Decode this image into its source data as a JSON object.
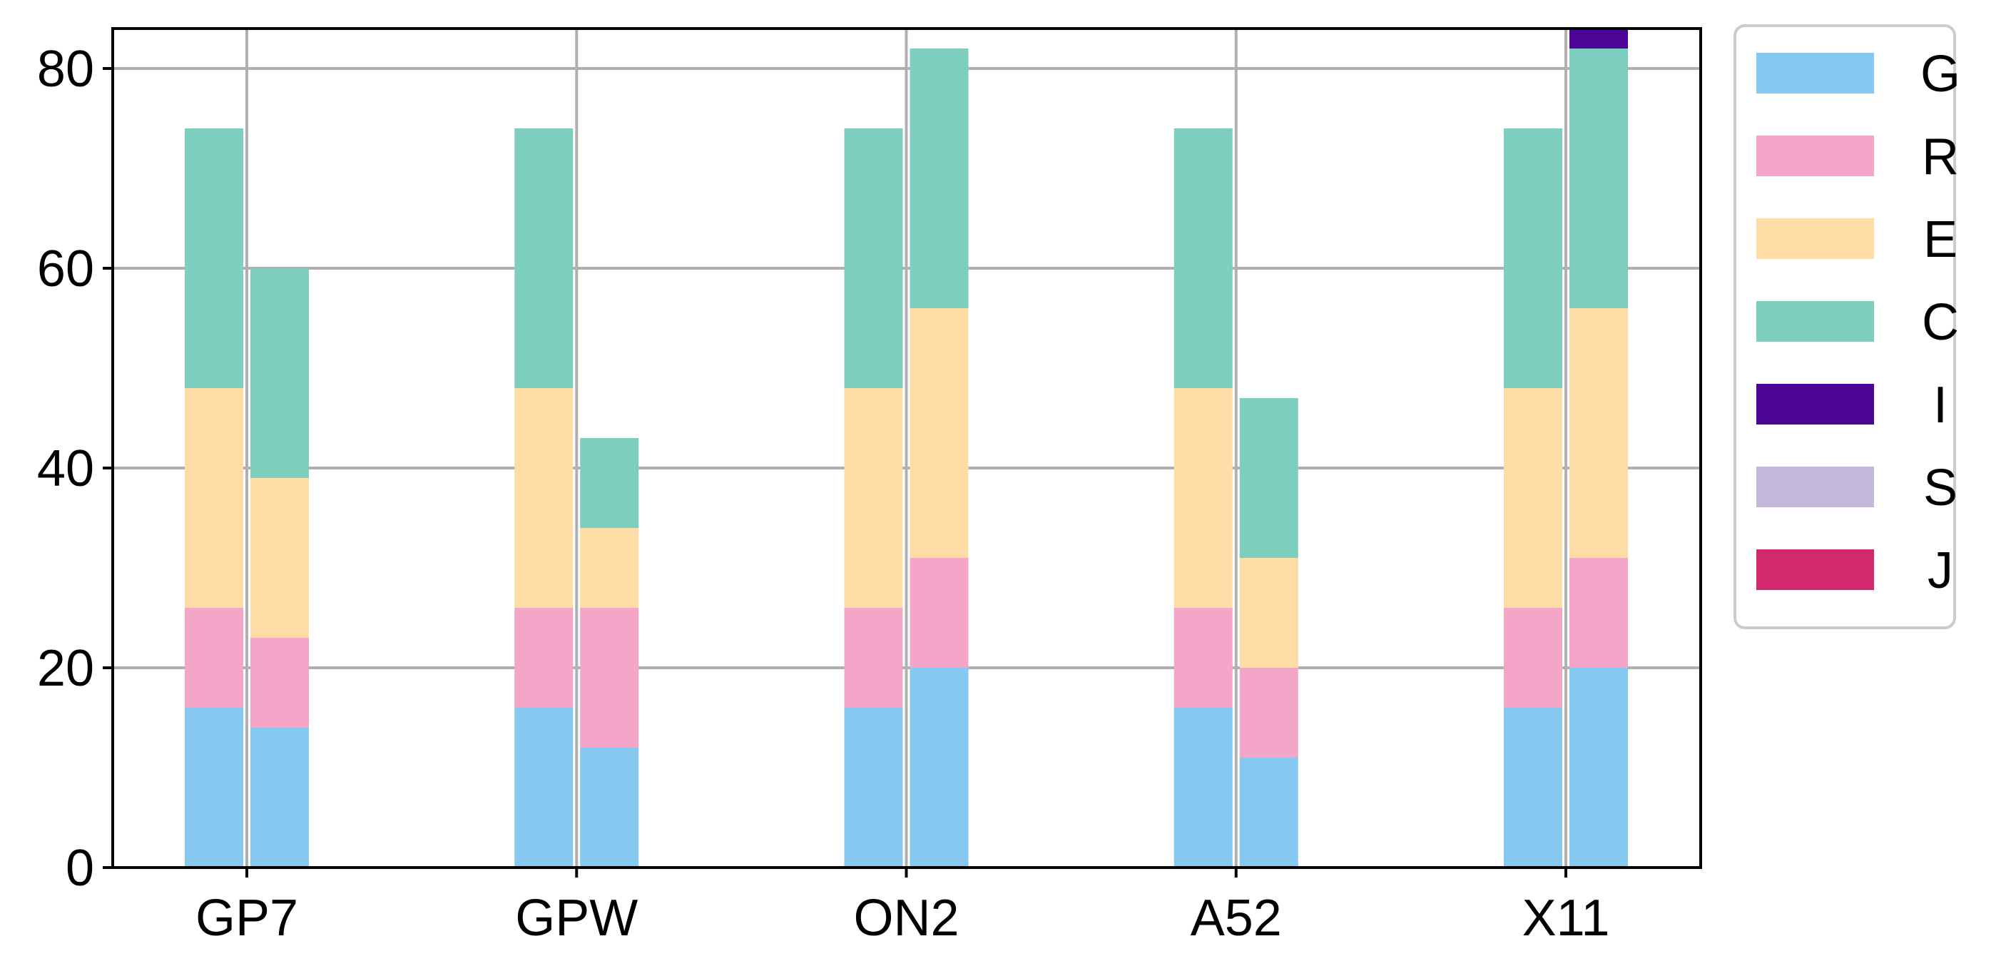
{
  "chart_data": {
    "type": "bar",
    "stacked": true,
    "bars_per_category": 2,
    "title": "",
    "xlabel": "",
    "ylabel": "",
    "ylim": [
      0,
      84
    ],
    "yticks": [
      0,
      20,
      40,
      60,
      80
    ],
    "grid": true,
    "legend_position": "outside-right-top",
    "categories": [
      "GP7",
      "GPW",
      "ON2",
      "A52",
      "X11"
    ],
    "series": [
      {
        "name": "G",
        "color": "#85c8f0",
        "values_left": [
          16,
          16,
          16,
          16,
          16
        ],
        "values_right": [
          14,
          12,
          20,
          11,
          20
        ]
      },
      {
        "name": "R",
        "color": "#f4a6c8",
        "values_left": [
          10,
          10,
          10,
          10,
          10
        ],
        "values_right": [
          9,
          14,
          11,
          9,
          11
        ]
      },
      {
        "name": "E",
        "color": "#fddca6",
        "values_left": [
          22,
          22,
          22,
          22,
          22
        ],
        "values_right": [
          16,
          8,
          25,
          11,
          25
        ]
      },
      {
        "name": "C",
        "color": "#7ecebf",
        "values_left": [
          26,
          26,
          26,
          26,
          26
        ],
        "values_right": [
          21,
          9,
          26,
          16,
          26
        ]
      },
      {
        "name": "I",
        "color": "#4b0496",
        "values_left": [
          0,
          0,
          0,
          0,
          0
        ],
        "values_right": [
          0,
          0,
          0,
          0,
          2
        ]
      },
      {
        "name": "S",
        "color": "#c3b8d9",
        "values_left": [
          0,
          0,
          0,
          0,
          0
        ],
        "values_right": [
          0,
          0,
          0,
          0,
          0
        ]
      },
      {
        "name": "J",
        "color": "#d1286e",
        "values_left": [
          0,
          0,
          0,
          0,
          0
        ],
        "values_right": [
          0,
          0,
          0,
          0,
          0
        ]
      }
    ]
  },
  "style": {
    "grid_color": "#b0b0b0",
    "axis_color": "#000000",
    "legend_border_color": "#cccccc"
  }
}
